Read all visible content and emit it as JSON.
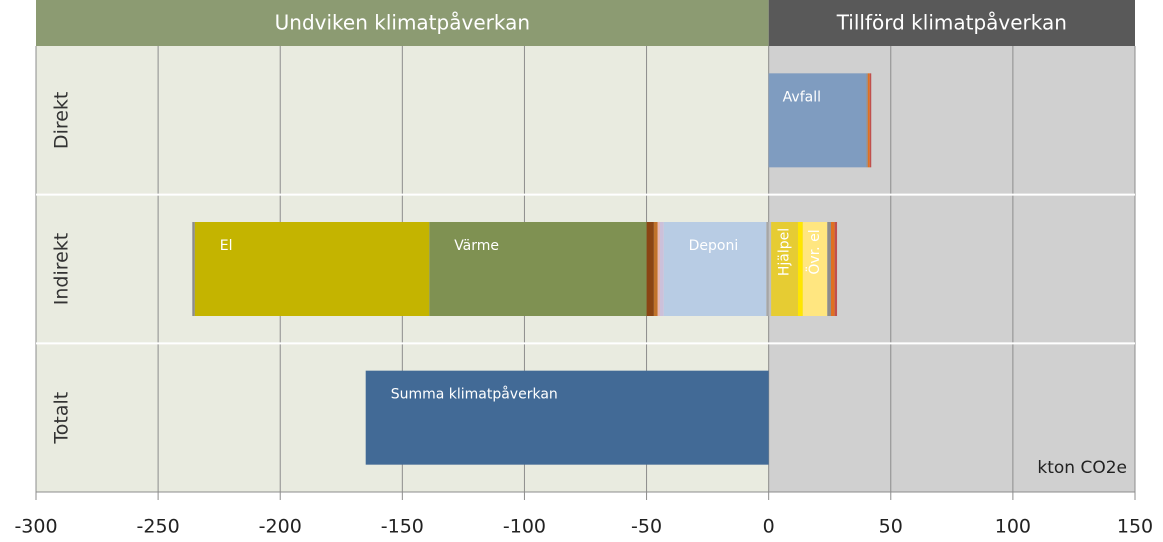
{
  "chart_data": {
    "type": "bar",
    "orientation": "horizontal",
    "stacked": true,
    "regions": [
      {
        "label": "Undviken klimatpåverkan",
        "range": [
          -300,
          0
        ],
        "color": "#8c9b72",
        "background": "#e9ebe0"
      },
      {
        "label": "Tillförd klimatpåverkan",
        "range": [
          0,
          150
        ],
        "color": "#595959",
        "background": "#d0d0d0"
      }
    ],
    "categories": [
      "Direkt",
      "Indirekt",
      "Totalt"
    ],
    "unit_label": "kton CO2e",
    "xlim": [
      -300,
      150
    ],
    "xticks": [
      -300,
      -250,
      -200,
      -150,
      -100,
      -50,
      0,
      50,
      100,
      150
    ],
    "grid": true,
    "series": [
      {
        "color": "#a6a6a6",
        "values": [
          null,
          -1,
          null
        ]
      },
      {
        "name": "Deponi",
        "color": "#b8cce4",
        "values": [
          null,
          -42,
          null
        ]
      },
      {
        "color": "#ccc0da",
        "values": [
          null,
          -1.5,
          null
        ]
      },
      {
        "color": "#e6b9b8",
        "values": [
          null,
          -1,
          null
        ]
      },
      {
        "color": "#c0722a",
        "values": [
          null,
          -1.5,
          null
        ]
      },
      {
        "color": "#8b4513",
        "values": [
          null,
          -3,
          null
        ]
      },
      {
        "name": "Värme",
        "color": "#7f9152",
        "values": [
          null,
          -89,
          null
        ]
      },
      {
        "name": "El",
        "color": "#c4b400",
        "values": [
          null,
          -96,
          null
        ]
      },
      {
        "color": "#8c8c8c",
        "values": [
          null,
          -1,
          null
        ]
      },
      {
        "name": "Summa klimatpåverkan",
        "color": "#426a96",
        "values": [
          null,
          null,
          -165
        ]
      },
      {
        "name": "Avfall",
        "color": "#7f9cc0",
        "values": [
          40,
          null,
          null
        ]
      },
      {
        "color": "#bfbfbf",
        "values": [
          null,
          1,
          null
        ]
      },
      {
        "name": "Hjälpel",
        "color": "#e6cc33",
        "values": [
          null,
          11,
          null
        ]
      },
      {
        "color": "#ffe600",
        "values": [
          null,
          2,
          null
        ]
      },
      {
        "name": "Övr. el",
        "color": "#ffe680",
        "values": [
          null,
          10,
          null
        ]
      },
      {
        "color": "#8c8c8c",
        "values": [
          0.6,
          1.5,
          null
        ]
      },
      {
        "color": "#e07020",
        "values": [
          0.8,
          1.5,
          null
        ]
      },
      {
        "color": "#c0504d",
        "values": [
          0.6,
          1,
          null
        ]
      }
    ]
  }
}
